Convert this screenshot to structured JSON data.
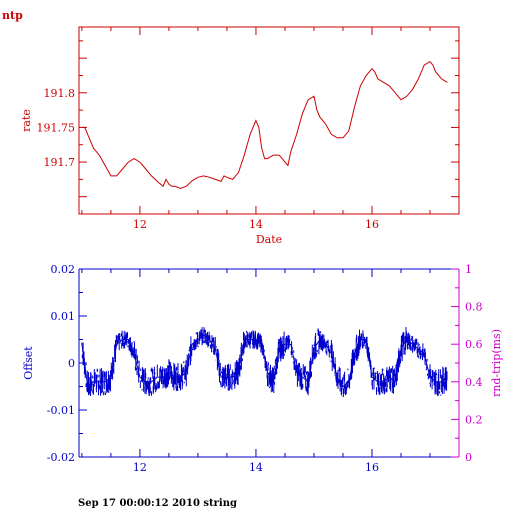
{
  "header": {
    "title": "ntp"
  },
  "footer": {
    "text": "Sep 17 00:00:12 2010 string"
  },
  "chart_data": [
    {
      "type": "line",
      "ylabel": "rate",
      "xlabel": "Date",
      "xlim": [
        10.95,
        17.5
      ],
      "ylim": [
        191.625,
        191.895
      ],
      "x_ticks": [
        12,
        14,
        16
      ],
      "y_ticks": [
        191.7,
        191.75,
        191.8
      ],
      "x_tick_labels": [
        "12",
        "14",
        "16"
      ],
      "y_tick_labels": [
        "191.7",
        "191.75",
        "191.8"
      ],
      "color": "#cc0000",
      "series": [
        {
          "x": [
            11.0,
            11.05,
            11.1,
            11.2,
            11.3,
            11.4,
            11.5,
            11.6,
            11.7,
            11.8,
            11.9,
            12.0,
            12.05,
            12.1,
            12.2,
            12.3,
            12.4,
            12.45,
            12.5,
            12.55,
            12.6,
            12.7,
            12.8,
            12.9,
            13.0,
            13.1,
            13.2,
            13.3,
            13.4,
            13.45,
            13.5,
            13.6,
            13.7,
            13.8,
            13.9,
            14.0,
            14.05,
            14.1,
            14.15,
            14.2,
            14.3,
            14.4,
            14.5,
            14.55,
            14.6,
            14.7,
            14.8,
            14.9,
            15.0,
            15.05,
            15.1,
            15.2,
            15.3,
            15.4,
            15.5,
            15.6,
            15.7,
            15.8,
            15.9,
            16.0,
            16.05,
            16.1,
            16.2,
            16.3,
            16.4,
            16.5,
            16.6,
            16.7,
            16.8,
            16.9,
            17.0,
            17.05,
            17.1,
            17.2,
            17.3
          ],
          "y": [
            191.75,
            191.75,
            191.74,
            191.72,
            191.71,
            191.695,
            191.68,
            191.68,
            191.69,
            191.7,
            191.705,
            191.7,
            191.695,
            191.69,
            191.68,
            191.672,
            191.665,
            191.675,
            191.668,
            191.665,
            191.665,
            191.662,
            191.665,
            191.673,
            191.678,
            191.68,
            191.678,
            191.675,
            191.672,
            191.68,
            191.678,
            191.675,
            191.685,
            191.71,
            191.74,
            191.76,
            191.75,
            191.72,
            191.705,
            191.705,
            191.71,
            191.71,
            191.7,
            191.695,
            191.715,
            191.74,
            191.77,
            191.79,
            191.795,
            191.775,
            191.765,
            191.755,
            191.74,
            191.735,
            191.735,
            191.745,
            191.78,
            191.81,
            191.825,
            191.835,
            191.83,
            191.82,
            191.815,
            191.81,
            191.8,
            191.79,
            191.795,
            191.805,
            191.82,
            191.84,
            191.845,
            191.84,
            191.83,
            191.82,
            191.815
          ]
        }
      ]
    },
    {
      "type": "line",
      "ylabel": "Offset",
      "y2label": "rnd-trip(ms)",
      "xlim": [
        10.95,
        17.5
      ],
      "ylim": [
        -0.02,
        0.02
      ],
      "y2lim": [
        0,
        1
      ],
      "x_ticks": [
        12,
        14,
        16
      ],
      "x_tick_labels": [
        "12",
        "14",
        "16"
      ],
      "y_ticks": [
        -0.02,
        -0.01,
        0,
        0.01,
        0.02
      ],
      "y_tick_labels": [
        "-0.02",
        "-0.01",
        "0",
        "0.01",
        "0.02"
      ],
      "y2_ticks": [
        0,
        0.2,
        0.4,
        0.6,
        0.8,
        1
      ],
      "y2_tick_labels": [
        "0",
        "0.2",
        "0.4",
        "0.6",
        "0.8",
        "1"
      ],
      "color": "#0000cc",
      "y2color": "#cc00cc",
      "series": [
        {
          "x": [
            11.0,
            11.1,
            11.2,
            11.3,
            11.4,
            11.5,
            11.6,
            11.7,
            11.8,
            11.9,
            12.0,
            12.1,
            12.2,
            12.3,
            12.4,
            12.5,
            12.6,
            12.7,
            12.8,
            12.9,
            13.0,
            13.1,
            13.2,
            13.3,
            13.4,
            13.5,
            13.6,
            13.7,
            13.8,
            13.9,
            14.0,
            14.1,
            14.2,
            14.3,
            14.4,
            14.5,
            14.6,
            14.7,
            14.8,
            14.9,
            15.0,
            15.1,
            15.2,
            15.3,
            15.4,
            15.5,
            15.6,
            15.7,
            15.8,
            15.9,
            16.0,
            16.1,
            16.2,
            16.3,
            16.4,
            16.5,
            16.6,
            16.7,
            16.8,
            16.9,
            17.0,
            17.1,
            17.2,
            17.3
          ],
          "y": [
            0.004,
            -0.005,
            -0.004,
            -0.004,
            -0.004,
            -0.003,
            0.004,
            0.005,
            0.005,
            0.002,
            -0.003,
            -0.004,
            -0.004,
            -0.003,
            -0.003,
            -0.002,
            -0.003,
            -0.003,
            -0.002,
            0.004,
            0.005,
            0.006,
            0.005,
            0.003,
            -0.003,
            -0.003,
            -0.003,
            -0.002,
            0.005,
            0.005,
            0.005,
            0.004,
            -0.002,
            -0.004,
            0.003,
            0.004,
            0.004,
            -0.002,
            -0.003,
            -0.004,
            0.003,
            0.005,
            0.004,
            0.002,
            -0.003,
            -0.005,
            -0.004,
            0.002,
            0.005,
            0.005,
            -0.003,
            -0.004,
            -0.004,
            -0.003,
            -0.004,
            0.003,
            0.005,
            0.004,
            0.003,
            0.002,
            -0.003,
            -0.004,
            -0.004,
            -0.003
          ],
          "spread": [
            0.003,
            0.003,
            0.003,
            0.003,
            0.003,
            0.003,
            0.002,
            0.002,
            0.002,
            0.003,
            0.003,
            0.003,
            0.003,
            0.003,
            0.003,
            0.003,
            0.003,
            0.003,
            0.003,
            0.002,
            0.002,
            0.002,
            0.002,
            0.003,
            0.003,
            0.003,
            0.003,
            0.003,
            0.002,
            0.002,
            0.002,
            0.002,
            0.003,
            0.003,
            0.003,
            0.002,
            0.002,
            0.003,
            0.003,
            0.003,
            0.003,
            0.002,
            0.002,
            0.003,
            0.003,
            0.003,
            0.003,
            0.003,
            0.002,
            0.002,
            0.003,
            0.003,
            0.003,
            0.003,
            0.003,
            0.003,
            0.002,
            0.002,
            0.002,
            0.002,
            0.003,
            0.003,
            0.003,
            0.003
          ]
        }
      ]
    }
  ]
}
